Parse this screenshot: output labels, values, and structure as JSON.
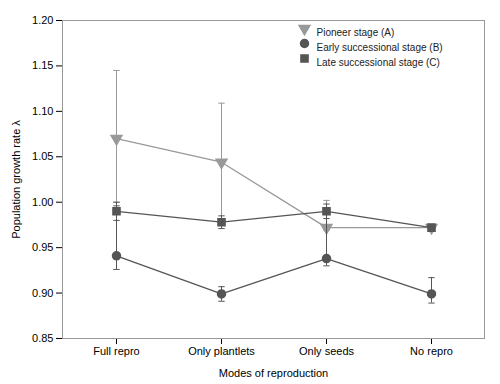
{
  "chart_data": {
    "type": "line",
    "xlabel": "Modes of reproduction",
    "ylabel": "Population growth rate λ",
    "categories": [
      "Full repro",
      "Only plantlets",
      "Only seeds",
      "No repro"
    ],
    "series": [
      {
        "name": "Pioneer stage (A)",
        "color": "#999999",
        "marker": "triangle-down",
        "values": [
          1.07,
          1.044,
          0.972,
          0.972
        ],
        "error_low": [
          0.07,
          0.065,
          0.003,
          0.003
        ],
        "error_high": [
          0.075,
          0.065,
          0.03,
          0.003
        ]
      },
      {
        "name": "Early successional stage (B)",
        "color": "#555555",
        "marker": "circle",
        "values": [
          0.941,
          0.899,
          0.938,
          0.899
        ],
        "error_low": [
          0.015,
          0.008,
          0.008,
          0.01
        ],
        "error_high": [
          0.055,
          0.008,
          0.055,
          0.018
        ]
      },
      {
        "name": "Late successional stage (C)",
        "color": "#555555",
        "marker": "square",
        "values": [
          0.99,
          0.978,
          0.99,
          0.972
        ],
        "error_low": [
          0.01,
          0.007,
          0.008,
          0.003
        ],
        "error_high": [
          0.01,
          0.007,
          0.008,
          0.003
        ]
      }
    ],
    "ylim": [
      0.85,
      1.2
    ],
    "yticks": [
      0.85,
      {
        "value": 0.9,
        "label": "0.90"
      },
      0.95,
      {
        "value": 1.0,
        "label": "1.00"
      },
      1.05,
      {
        "value": 1.1,
        "label": "1.10"
      },
      1.15,
      {
        "value": 1.2,
        "label": "1.20"
      }
    ],
    "legend": "upper right"
  }
}
